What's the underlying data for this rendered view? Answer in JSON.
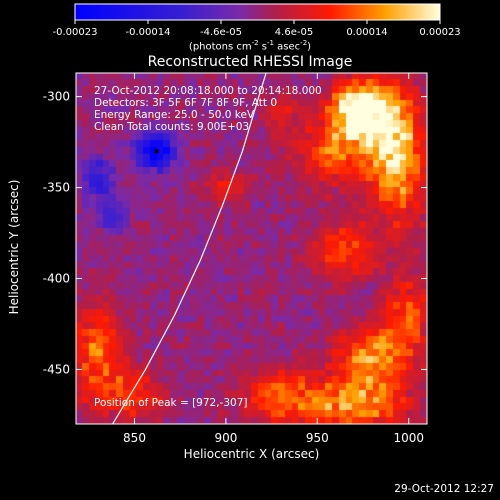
{
  "chart_data": {
    "type": "heatmap",
    "title": "Reconstructed RHESSI Image",
    "xlabel": "Heliocentric X (arcsec)",
    "ylabel": "Heliocentric Y (arcsec)",
    "xlim": [
      818,
      1010
    ],
    "ylim": [
      -480,
      -287
    ],
    "xticks": [
      850,
      900,
      950,
      1000
    ],
    "yticks": [
      -300,
      -350,
      -400,
      -450
    ],
    "colorbar": {
      "min": -0.00023,
      "max": 0.00023,
      "tick_labels": [
        "-0.00023",
        "-0.00014",
        "-4.6e-05",
        "4.6e-05",
        "0.00014",
        "0.00023"
      ],
      "unit_parts": {
        "a": "(photons cm",
        "b": "-2",
        "c": " s",
        "d": "-1",
        "e": " asec",
        "f": "-2",
        "g": ")"
      }
    },
    "info_lines": [
      "27-Oct-2012 20:08:18.000  to  20:14:18.000",
      "Detectors: 3F 5F 6F 7F 8F 9F, Att 0",
      "Energy Range: 25.0 - 50.0 keV",
      "Clean      Total counts: 9.00E+03"
    ],
    "peak_label": "Position of Peak = [972,-307]",
    "peak_position": [
      972,
      -307
    ],
    "limb_arc": [
      [
        838,
        -480
      ],
      [
        856,
        -450
      ],
      [
        872,
        -420
      ],
      [
        886,
        -390
      ],
      [
        898,
        -360
      ],
      [
        909,
        -330
      ],
      [
        918,
        -300
      ],
      [
        922,
        -287
      ]
    ],
    "hot_regions": [
      {
        "x": 972,
        "y": -307,
        "value": 0.00023,
        "sx": 10,
        "sy": 10
      },
      {
        "x": 988,
        "y": -315,
        "value": 0.00018,
        "sx": 12,
        "sy": 16
      },
      {
        "x": 960,
        "y": -330,
        "value": 0.00012,
        "sx": 14,
        "sy": 14
      },
      {
        "x": 995,
        "y": -345,
        "value": 0.00014,
        "sx": 10,
        "sy": 20
      },
      {
        "x": 965,
        "y": -385,
        "value": 0.00012,
        "sx": 12,
        "sy": 10
      },
      {
        "x": 1000,
        "y": -420,
        "value": 0.00011,
        "sx": 10,
        "sy": 14
      },
      {
        "x": 980,
        "y": -445,
        "value": 0.00016,
        "sx": 14,
        "sy": 12
      },
      {
        "x": 970,
        "y": -470,
        "value": 0.00015,
        "sx": 20,
        "sy": 10
      },
      {
        "x": 930,
        "y": -465,
        "value": 0.00012,
        "sx": 14,
        "sy": 10
      },
      {
        "x": 830,
        "y": -440,
        "value": 0.00013,
        "sx": 10,
        "sy": 18
      },
      {
        "x": 850,
        "y": -465,
        "value": 0.0001,
        "sx": 12,
        "sy": 10
      },
      {
        "x": 900,
        "y": -350,
        "value": 8e-05,
        "sx": 8,
        "sy": 6
      },
      {
        "x": 930,
        "y": -310,
        "value": 7e-05,
        "sx": 6,
        "sy": 8
      }
    ],
    "cold_regions": [
      {
        "x": 862,
        "y": -330,
        "value": -0.00023,
        "sx": 7,
        "sy": 7
      },
      {
        "x": 830,
        "y": -345,
        "value": -0.00012,
        "sx": 6,
        "sy": 8
      },
      {
        "x": 838,
        "y": -365,
        "value": -0.0001,
        "sx": 6,
        "sy": 6
      }
    ],
    "info_color": "#ffffff",
    "limb_color": "#ffffff",
    "colormap": "blue-purple-red-yellow-white"
  },
  "footer": {
    "date": "29-Oct-2012 12:27"
  }
}
